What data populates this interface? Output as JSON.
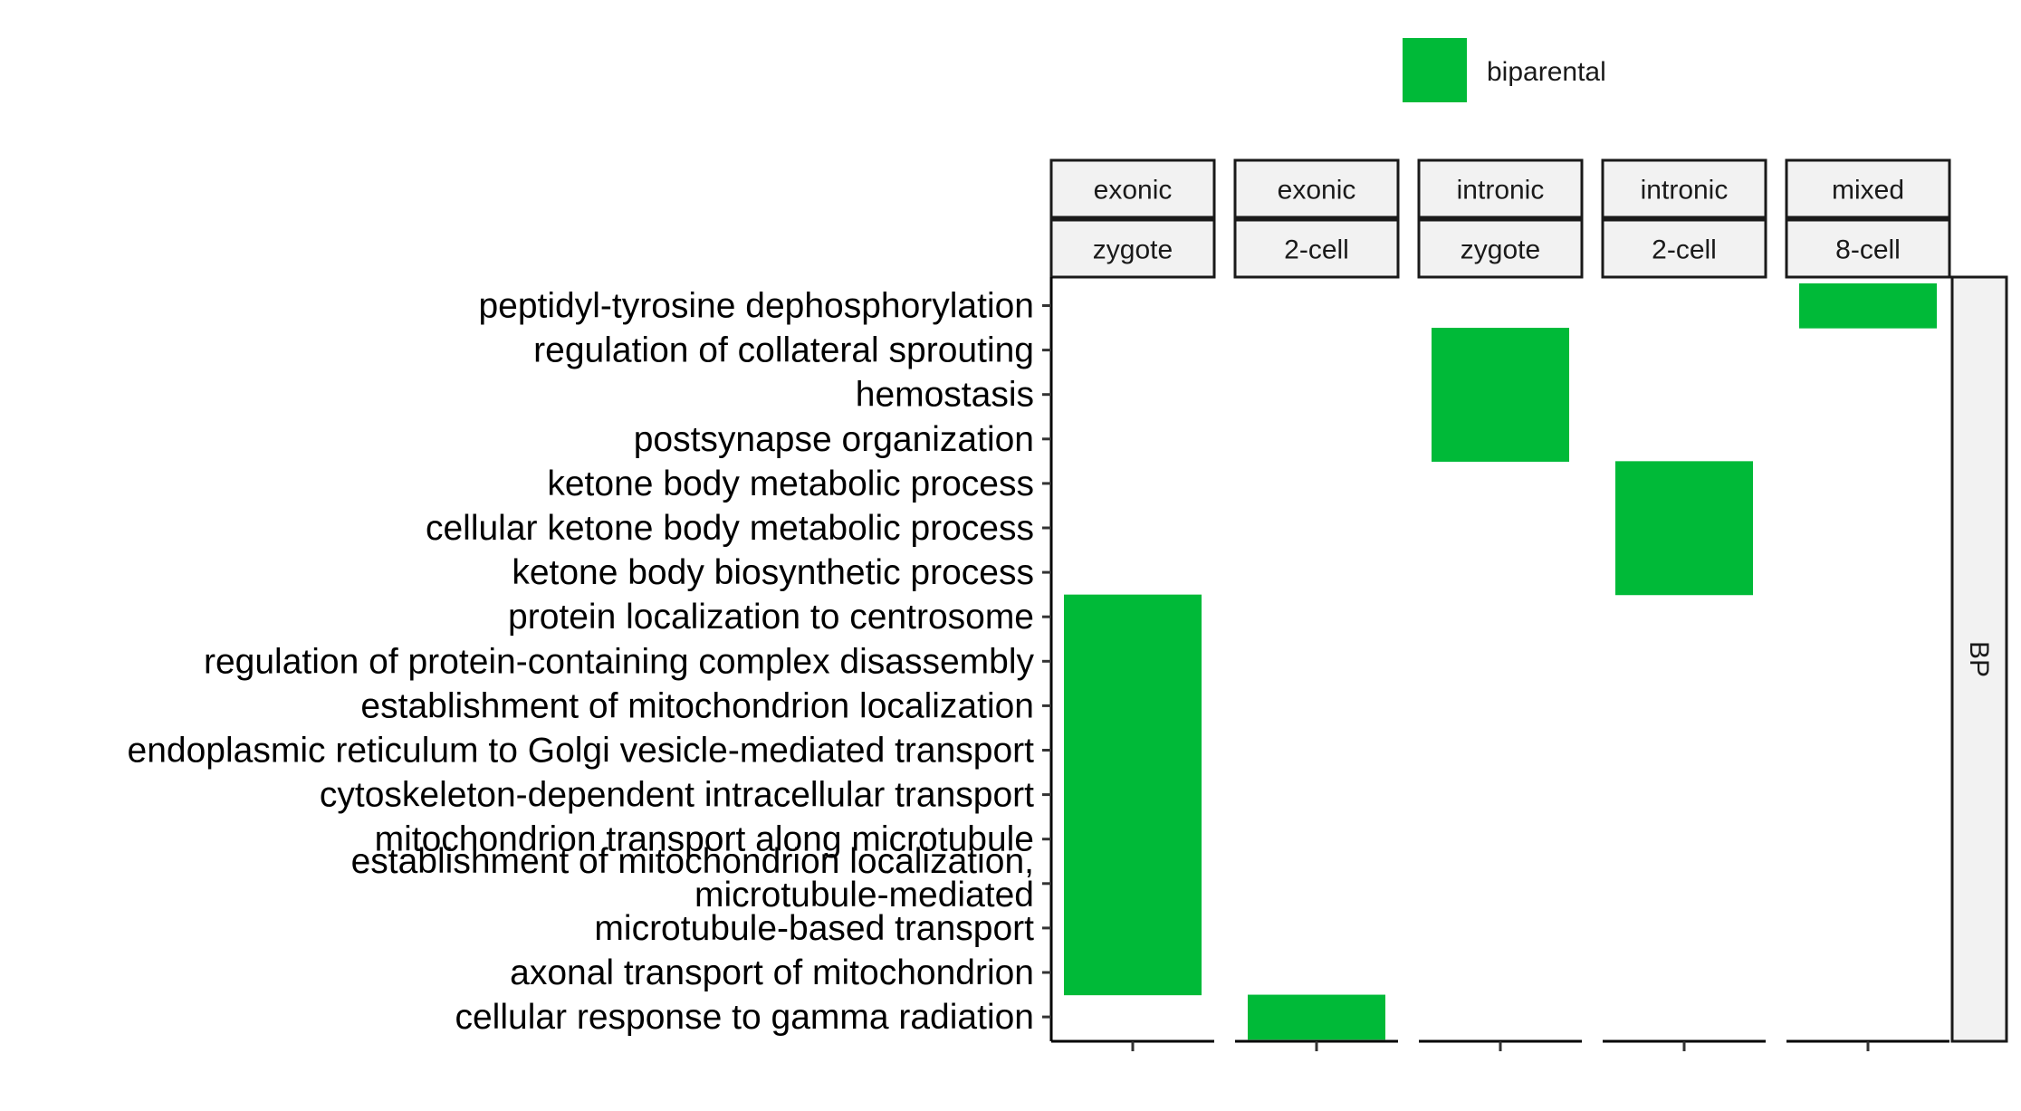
{
  "chart_data": {
    "type": "heatmap",
    "title": "",
    "xlabel": "",
    "ylabel": "",
    "legend": {
      "placement": "top",
      "entries": [
        {
          "label": "biparental",
          "color": "#00BA38"
        }
      ]
    },
    "panels": [
      {
        "key": "p1",
        "top": "exonic",
        "bottom": "zygote"
      },
      {
        "key": "p2",
        "top": "exonic",
        "bottom": "2-cell"
      },
      {
        "key": "p3",
        "top": "intronic",
        "bottom": "zygote"
      },
      {
        "key": "p4",
        "top": "intronic",
        "bottom": "2-cell"
      },
      {
        "key": "p5",
        "top": "mixed",
        "bottom": "8-cell"
      }
    ],
    "row_strip": "BP",
    "terms": [
      "peptidyl-tyrosine dephosphorylation",
      "regulation of collateral sprouting",
      "hemostasis",
      "postsynapse organization",
      "ketone body metabolic process",
      "cellular ketone body metabolic process",
      "ketone body biosynthetic process",
      "protein localization to centrosome",
      "regulation of protein-containing complex disassembly",
      "establishment of mitochondrion localization",
      "endoplasmic reticulum to Golgi vesicle-mediated transport",
      "cytoskeleton-dependent intracellular transport",
      "mitochondrion transport along microtubule",
      "establishment of mitochondrion localization, microtubule-mediated",
      "microtubule-based transport",
      "axonal transport of mitochondrion",
      "cellular response to gamma radiation"
    ],
    "cells": [
      {
        "panel": 4,
        "term": "peptidyl-tyrosine dephosphorylation",
        "fill": "biparental"
      },
      {
        "panel": 2,
        "term": "regulation of collateral sprouting",
        "fill": "biparental"
      },
      {
        "panel": 2,
        "term": "hemostasis",
        "fill": "biparental"
      },
      {
        "panel": 2,
        "term": "postsynapse organization",
        "fill": "biparental"
      },
      {
        "panel": 3,
        "term": "ketone body metabolic process",
        "fill": "biparental"
      },
      {
        "panel": 3,
        "term": "cellular ketone body metabolic process",
        "fill": "biparental"
      },
      {
        "panel": 3,
        "term": "ketone body biosynthetic process",
        "fill": "biparental"
      },
      {
        "panel": 0,
        "term": "protein localization to centrosome",
        "fill": "biparental"
      },
      {
        "panel": 0,
        "term": "regulation of protein-containing complex disassembly",
        "fill": "biparental"
      },
      {
        "panel": 0,
        "term": "establishment of mitochondrion localization",
        "fill": "biparental"
      },
      {
        "panel": 0,
        "term": "endoplasmic reticulum to Golgi vesicle-mediated transport",
        "fill": "biparental"
      },
      {
        "panel": 0,
        "term": "cytoskeleton-dependent intracellular transport",
        "fill": "biparental"
      },
      {
        "panel": 0,
        "term": "mitochondrion transport along microtubule",
        "fill": "biparental"
      },
      {
        "panel": 0,
        "term": "establishment of mitochondrion localization, microtubule-mediated",
        "fill": "biparental"
      },
      {
        "panel": 0,
        "term": "microtubule-based transport",
        "fill": "biparental"
      },
      {
        "panel": 0,
        "term": "axonal transport of mitochondrion",
        "fill": "biparental"
      },
      {
        "panel": 1,
        "term": "cellular response to gamma radiation",
        "fill": "biparental"
      }
    ]
  }
}
